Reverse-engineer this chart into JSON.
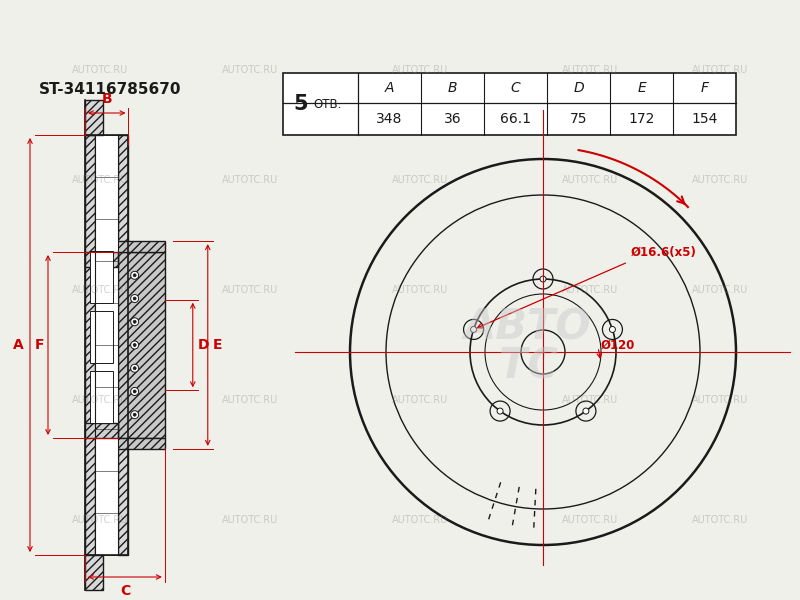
{
  "bg_color": "#f0f0eb",
  "line_color": "#1a1a1a",
  "red_color": "#cc0000",
  "part_number": "ST-34116785670",
  "otv_label": "ОТВ.",
  "dim_labels": [
    "A",
    "B",
    "C",
    "D",
    "E",
    "F"
  ],
  "dim_values": [
    "348",
    "36",
    "66.1",
    "75",
    "172",
    "154"
  ],
  "dia_label1": "Ø16.6(x5)",
  "dia_label2": "Ø120",
  "watermark": "AUTOTC.RU",
  "figw": 8.0,
  "figh": 6.0,
  "dpi": 100
}
